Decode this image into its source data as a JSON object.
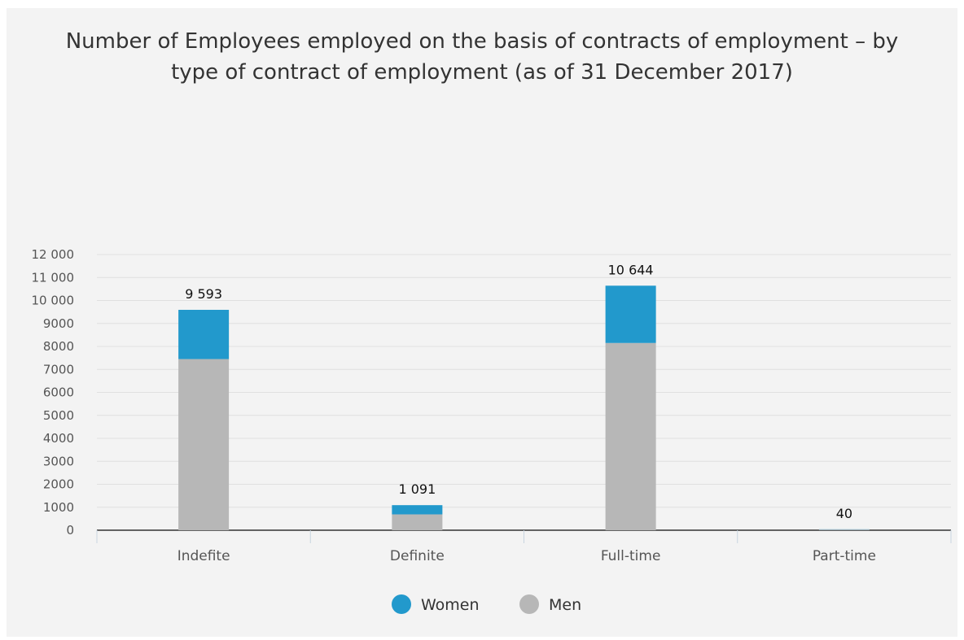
{
  "chart_data": {
    "type": "bar",
    "stacked": true,
    "title_lines": [
      "Number of Employees employed on the basis of contracts of employment – by",
      "type of contract of employment (as of 31 December 2017)"
    ],
    "categories": [
      "Indefite",
      "Definite",
      "Full-time",
      "Part-time"
    ],
    "series": [
      {
        "name": "Men",
        "color": "#b7b7b7",
        "values": [
          7450,
          690,
          8150,
          30
        ]
      },
      {
        "name": "Women",
        "color": "#2299cc",
        "values": [
          2143,
          401,
          2494,
          10
        ]
      }
    ],
    "totals": [
      9593,
      1091,
      10644,
      40
    ],
    "total_labels": [
      "9 593",
      "1 091",
      "10 644",
      "40"
    ],
    "ylim": [
      0,
      12000
    ],
    "y_ticks": [
      0,
      1000,
      2000,
      3000,
      4000,
      5000,
      6000,
      7000,
      8000,
      9000,
      10000,
      11000,
      12000
    ],
    "y_tick_labels": [
      "0",
      "1000",
      "2000",
      "3000",
      "4000",
      "5000",
      "6000",
      "7000",
      "8000",
      "9000",
      "10 000",
      "11 000",
      "12 000"
    ],
    "legend": {
      "position": "bottom-center",
      "items": [
        {
          "label": "Women",
          "color": "#2299cc"
        },
        {
          "label": "Men",
          "color": "#b7b7b7"
        }
      ]
    },
    "grid": true,
    "xlabel": "",
    "ylabel": ""
  }
}
